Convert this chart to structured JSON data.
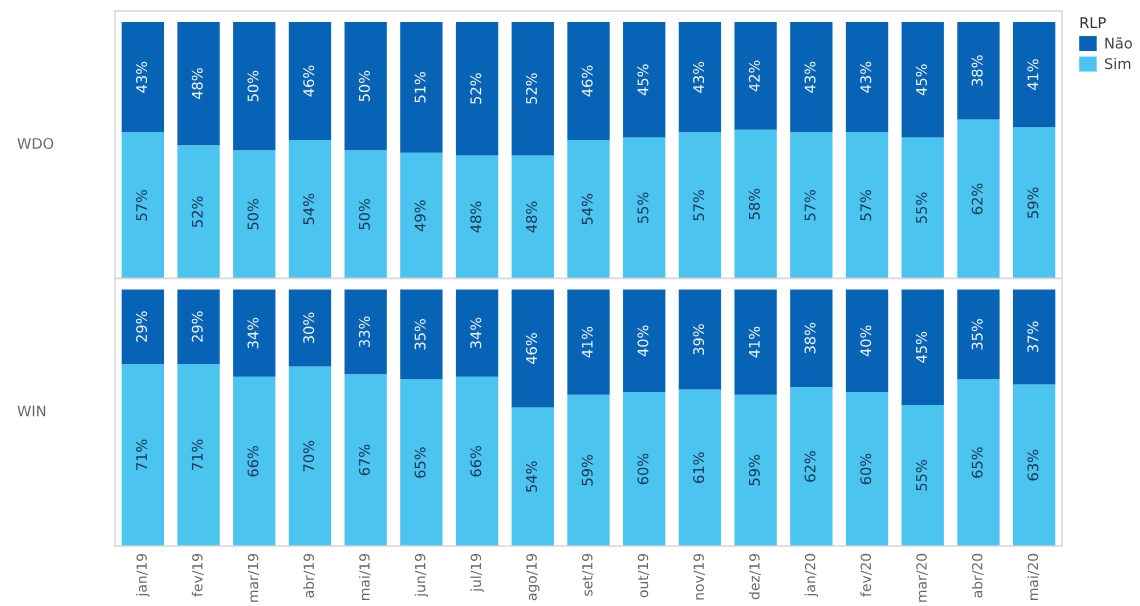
{
  "chart_data": [
    {
      "type": "bar",
      "stacked": true,
      "ylabel": "WDO",
      "tick_labels": false,
      "legend": "top right",
      "legend_title": "RLP",
      "categories": [
        null,
        null,
        null,
        null,
        null,
        null,
        null,
        null,
        null,
        null,
        null,
        null,
        null,
        null,
        null,
        null,
        null
      ],
      "series": [
        {
          "name": "Sim",
          "color": "#4bc4ef",
          "values": [
            57,
            52,
            50,
            54,
            50,
            49,
            48,
            48,
            54,
            55,
            57,
            58,
            57,
            57,
            55,
            62,
            59
          ],
          "value_labels": [
            "57%",
            "52%",
            "50%",
            "54%",
            "50%",
            "49%",
            "48%",
            "48%",
            "54%",
            "55%",
            "57%",
            "58%",
            "57%",
            "57%",
            "55%",
            "62%",
            "59%"
          ]
        },
        {
          "name": "Não",
          "color": "#0763b5",
          "values": [
            43,
            48,
            50,
            46,
            50,
            51,
            52,
            52,
            46,
            45,
            43,
            42,
            43,
            43,
            45,
            38,
            41
          ],
          "value_labels": [
            "43%",
            "48%",
            "50%",
            "46%",
            "50%",
            "51%",
            "52%",
            "52%",
            "46%",
            "45%",
            "43%",
            "42%",
            "43%",
            "43%",
            "45%",
            "38%",
            "41%"
          ]
        }
      ]
    },
    {
      "type": "bar",
      "stacked": true,
      "ylabel": "WIN",
      "tick_labels": "x",
      "categories": [
        "jan/19",
        "fev/19",
        "mar/19",
        "abr/19",
        "mai/19",
        "jun/19",
        "jul/19",
        "ago/19",
        "set/19",
        "out/19",
        "nov/19",
        "dez/19",
        "jan/20",
        "fev/20",
        "mar/20",
        "abr/20",
        "mai/20"
      ],
      "series": [
        {
          "color": "#4bc4ef",
          "values": [
            71,
            71,
            66,
            70,
            67,
            65,
            66,
            54,
            59,
            60,
            61,
            59,
            62,
            60,
            55,
            65,
            63
          ],
          "value_labels": [
            "71%",
            "71%",
            "66%",
            "70%",
            "67%",
            "65%",
            "66%",
            "54%",
            "59%",
            "60%",
            "61%",
            "59%",
            "62%",
            "60%",
            "55%",
            "65%",
            "63%"
          ]
        },
        {
          "color": "#0763b5",
          "values": [
            29,
            29,
            34,
            30,
            33,
            35,
            34,
            46,
            41,
            40,
            39,
            41,
            38,
            40,
            45,
            35,
            37
          ],
          "value_labels": [
            "29%",
            "29%",
            "34%",
            "30%",
            "33%",
            "35%",
            "34%",
            "46%",
            "41%",
            "40%",
            "39%",
            "41%",
            "38%",
            "40%",
            "45%",
            "35%",
            "37%"
          ]
        }
      ]
    }
  ]
}
